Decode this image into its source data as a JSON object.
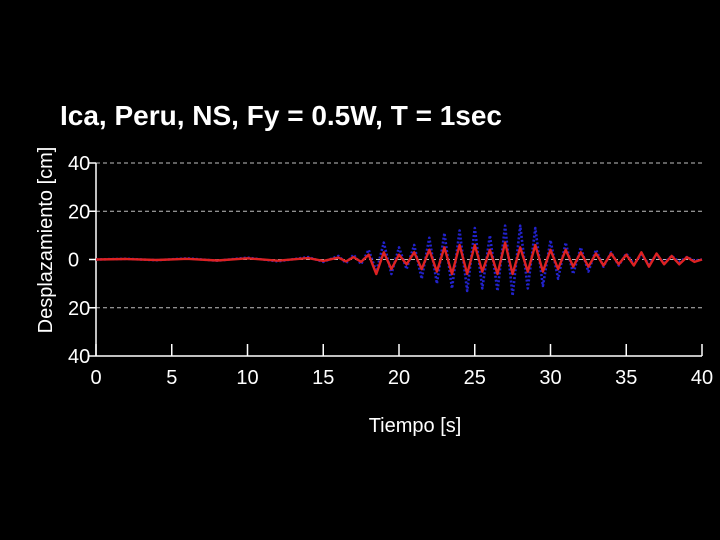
{
  "chart_data": {
    "type": "line",
    "title": "Ica, Peru, NS, Fy = 0.5W, T = 1sec",
    "xlabel": "Tiempo [s]",
    "ylabel": "Desplazamiento [cm]",
    "xlim": [
      0,
      40
    ],
    "ylim": [
      -40,
      40
    ],
    "x_ticks": [
      0,
      5,
      10,
      15,
      20,
      25,
      30,
      35,
      40
    ],
    "x_tick_labels": [
      "0",
      "5",
      "10",
      "15",
      "20",
      "25",
      "30",
      "35",
      "40"
    ],
    "y_ticks": [
      40,
      20,
      0,
      -20,
      -40
    ],
    "y_tick_labels": [
      "40",
      "20",
      "0",
      "20",
      "40"
    ],
    "grid": "horizontal dashed",
    "legend": "none",
    "colors": {
      "background": "#000000",
      "plot_area": "#000000",
      "axes": "#ffffff",
      "grid": "#ffffff",
      "text": "#ffffff"
    },
    "series": [
      {
        "color": "#2222cc",
        "style": "dotted",
        "x": [
          0,
          2,
          4,
          6,
          8,
          10,
          12,
          14,
          15,
          16,
          16.5,
          17,
          17.5,
          18,
          18.5,
          19,
          19.5,
          20,
          20.5,
          21,
          21.5,
          22,
          22.5,
          23,
          23.5,
          24,
          24.5,
          25,
          25.5,
          26,
          26.5,
          27,
          27.5,
          28,
          28.5,
          29,
          29.5,
          30,
          30.5,
          31,
          31.5,
          32,
          32.5,
          33,
          33.5,
          34,
          34.5,
          35,
          35.5,
          36,
          36.5,
          37,
          37.5,
          38,
          38.5,
          39,
          39.5,
          40
        ],
        "y": [
          0,
          0.3,
          -0.3,
          0.5,
          -0.5,
          0.8,
          -0.8,
          1.0,
          -1.0,
          1.5,
          -1.5,
          2.0,
          -2.0,
          4.0,
          -5.0,
          7.0,
          -6.0,
          5.0,
          -4.0,
          6.0,
          -8.0,
          9.0,
          -10.0,
          11.0,
          -12.0,
          12.0,
          -13.0,
          13.0,
          -12.0,
          10.0,
          -13.0,
          14.0,
          -15.0,
          14.0,
          -12.0,
          13.0,
          -11.0,
          8.0,
          -8.0,
          7.0,
          -6.0,
          5.0,
          -5.0,
          4.0,
          -3.0,
          3.0,
          -2.5,
          2.5,
          -2.0,
          2.0,
          -2.0,
          2.0,
          -1.5,
          1.5,
          -1.0,
          1.0,
          -0.5,
          0
        ]
      },
      {
        "color": "#dd2222",
        "style": "solid",
        "x": [
          0,
          2,
          4,
          6,
          8,
          10,
          12,
          14,
          15,
          16,
          16.5,
          17,
          17.5,
          18,
          18.5,
          19,
          19.5,
          20,
          20.5,
          21,
          21.5,
          22,
          22.5,
          23,
          23.5,
          24,
          24.5,
          25,
          25.5,
          26,
          26.5,
          27,
          27.5,
          28,
          28.5,
          29,
          29.5,
          30,
          30.5,
          31,
          31.5,
          32,
          32.5,
          33,
          33.5,
          34,
          34.5,
          35,
          35.5,
          36,
          36.5,
          37,
          37.5,
          38,
          38.5,
          39,
          39.5,
          40
        ],
        "y": [
          0,
          0.2,
          -0.2,
          0.3,
          -0.4,
          0.5,
          -0.5,
          0.6,
          -0.6,
          0.8,
          -0.8,
          1.0,
          -1.0,
          2.0,
          -6.0,
          3.0,
          -4.0,
          2.0,
          -2.0,
          3.0,
          -4.0,
          4.0,
          -5.0,
          5.0,
          -6.0,
          6.0,
          -6.0,
          6.0,
          -5.0,
          4.0,
          -6.0,
          7.0,
          -6.0,
          5.0,
          -5.0,
          6.0,
          -5.0,
          4.0,
          -4.0,
          4.0,
          -3.0,
          3.0,
          -3.0,
          2.5,
          -2.5,
          2.5,
          -2.0,
          2.0,
          -2.5,
          3.0,
          -3.0,
          2.5,
          -2.0,
          1.5,
          -2.0,
          1.0,
          -1.0,
          0
        ]
      }
    ]
  }
}
